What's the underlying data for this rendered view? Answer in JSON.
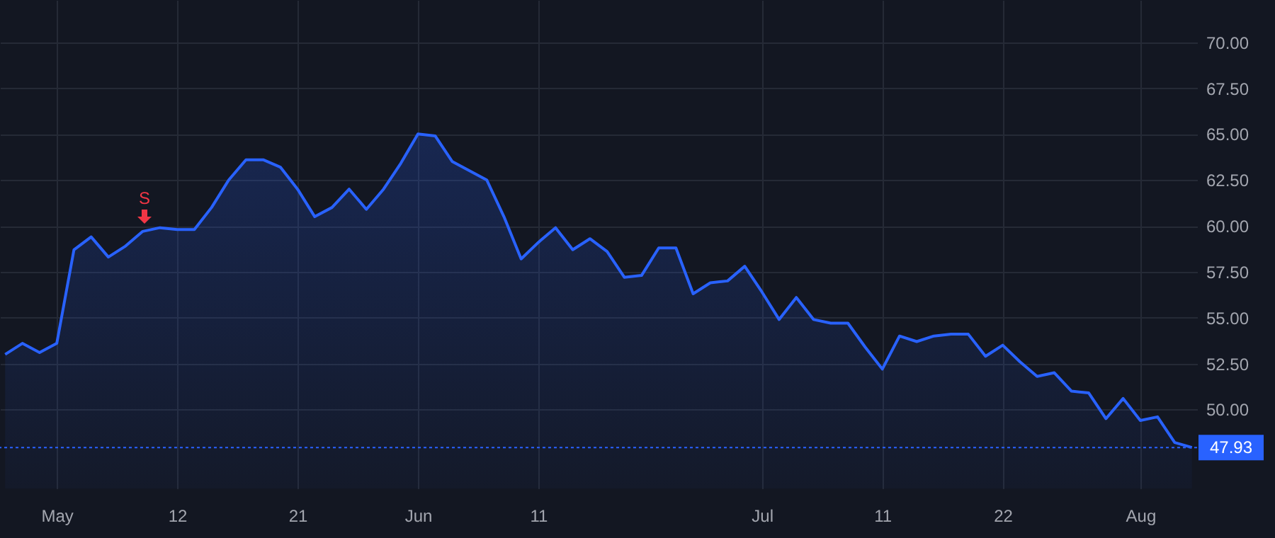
{
  "chart_data": {
    "type": "area",
    "categories": [
      null,
      null,
      null,
      "May",
      null,
      null,
      null,
      null,
      null,
      null,
      "12",
      null,
      null,
      null,
      null,
      null,
      null,
      "21",
      null,
      null,
      null,
      null,
      null,
      null,
      "Jun",
      null,
      null,
      null,
      null,
      null,
      null,
      "11",
      null,
      null,
      null,
      null,
      null,
      null,
      null,
      null,
      null,
      null,
      null,
      null,
      "Jul",
      null,
      null,
      null,
      null,
      null,
      null,
      "11",
      null,
      null,
      null,
      null,
      null,
      null,
      "22",
      null,
      null,
      null,
      null,
      null,
      null,
      null,
      "Aug",
      null,
      null,
      null
    ],
    "series": [
      {
        "color": "#2962ff",
        "values": [
          53.0,
          53.6,
          53.1,
          53.6,
          58.7,
          59.4,
          58.3,
          58.9,
          59.7,
          59.9,
          59.8,
          59.8,
          61.0,
          62.5,
          63.6,
          63.6,
          63.2,
          62.0,
          60.5,
          61.0,
          62.0,
          60.9,
          62.0,
          63.4,
          65.0,
          64.9,
          63.5,
          63.0,
          62.5,
          60.5,
          58.2,
          59.1,
          59.9,
          58.7,
          59.3,
          58.6,
          57.2,
          57.3,
          58.8,
          58.8,
          56.3,
          56.9,
          57.0,
          57.8,
          56.4,
          54.9,
          56.1,
          54.9,
          54.7,
          54.7,
          53.4,
          52.2,
          54.0,
          53.7,
          54.0,
          54.1,
          54.1,
          52.9,
          53.5,
          52.6,
          51.8,
          52.0,
          51.0,
          50.9,
          49.5,
          50.6,
          49.4,
          49.6,
          48.2,
          47.93
        ]
      }
    ],
    "ylim": [
      45.7,
      72.3
    ],
    "yticks": [
      {
        "value": 50,
        "label": "50.00"
      },
      {
        "value": 52.5,
        "label": "52.50"
      },
      {
        "value": 55,
        "label": "55.00"
      },
      {
        "value": 57.5,
        "label": "57.50"
      },
      {
        "value": 60,
        "label": "60.00"
      },
      {
        "value": 62.5,
        "label": "62.50"
      },
      {
        "value": 65,
        "label": "65.00"
      },
      {
        "value": 67.5,
        "label": "67.50"
      },
      {
        "value": 70,
        "label": "70.00"
      }
    ],
    "ref_lines": [
      {
        "axis": "y",
        "value": 47.93,
        "label": "47.93",
        "color": "#2962ff",
        "line_style": "dotted"
      }
    ],
    "annotations": [
      "S"
    ],
    "grid": true,
    "marker": "none"
  }
}
